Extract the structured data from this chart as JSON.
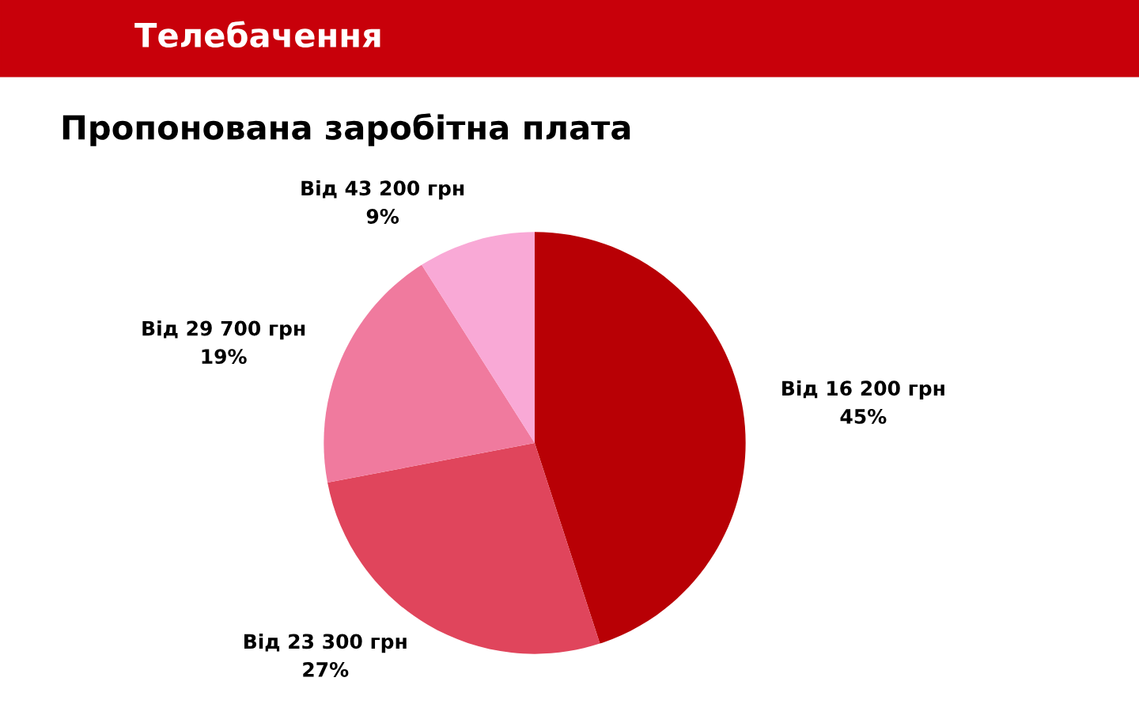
{
  "chart_data": {
    "type": "pie",
    "title": "Телебачення",
    "subtitle": "Пропонована заробітна плата",
    "categories": [
      "Від 16 200 грн",
      "Від 23 300 грн",
      "Від 29 700 грн",
      "Від 43 200 грн"
    ],
    "values": [
      45,
      27,
      19,
      9
    ],
    "value_labels": [
      "45%",
      "27%",
      "19%",
      "9%"
    ],
    "colors": [
      "#b80005",
      "#e0455c",
      "#f07a9e",
      "#f9a9d6"
    ],
    "legend": false
  }
}
